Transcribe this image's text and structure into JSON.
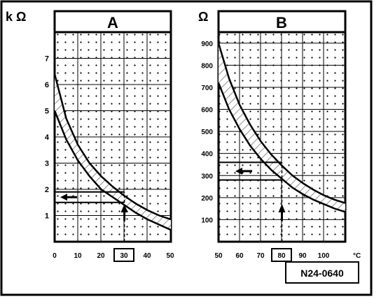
{
  "chart_data": [
    {
      "type": "line",
      "title": "A",
      "ylabel": "k Ω",
      "xlabel": "",
      "xlim": [
        0,
        50
      ],
      "ylim": [
        0,
        8
      ],
      "xticks": [
        "0",
        "10",
        "20",
        "30",
        "40",
        "50"
      ],
      "yticks": [
        "1",
        "2",
        "3",
        "4",
        "5",
        "6",
        "7"
      ],
      "highlighted_xtick": "30",
      "grid": true,
      "band": {
        "upper": {
          "x": [
            0,
            5,
            10,
            15,
            20,
            25,
            30,
            35,
            40,
            45,
            50
          ],
          "y": [
            6.4,
            4.7,
            3.7,
            3.0,
            2.5,
            2.1,
            1.75,
            1.45,
            1.2,
            1.0,
            0.85
          ]
        },
        "lower": {
          "x": [
            0,
            5,
            10,
            15,
            20,
            25,
            30,
            35,
            40,
            45,
            50
          ],
          "y": [
            5.0,
            3.9,
            3.1,
            2.5,
            2.0,
            1.7,
            1.4,
            1.1,
            0.85,
            0.65,
            0.45
          ]
        }
      },
      "reading": {
        "x": 30,
        "y_range": [
          1.5,
          1.9
        ]
      }
    },
    {
      "type": "line",
      "title": "B",
      "ylabel": "Ω",
      "xlabel": "°C",
      "xlim": [
        50,
        110
      ],
      "ylim": [
        0,
        950
      ],
      "xticks": [
        "50",
        "60",
        "70",
        "80",
        "90",
        "100"
      ],
      "x_unit": "°C",
      "yticks": [
        "100",
        "200",
        "300",
        "400",
        "500",
        "600",
        "700",
        "800",
        "900"
      ],
      "highlighted_xtick": "80",
      "grid": true,
      "band": {
        "upper": {
          "x": [
            50,
            55,
            60,
            65,
            70,
            75,
            80,
            85,
            90,
            95,
            100,
            105,
            110
          ],
          "y": [
            900,
            740,
            620,
            530,
            455,
            395,
            345,
            300,
            265,
            235,
            210,
            190,
            175
          ]
        },
        "lower": {
          "x": [
            50,
            55,
            60,
            65,
            70,
            75,
            80,
            85,
            90,
            95,
            100,
            105,
            110
          ],
          "y": [
            720,
            600,
            510,
            435,
            375,
            325,
            285,
            245,
            215,
            190,
            170,
            150,
            135
          ]
        }
      },
      "reading": {
        "x": 80,
        "y_range": [
          280,
          360
        ]
      }
    }
  ],
  "figure_code": "N24-0640"
}
